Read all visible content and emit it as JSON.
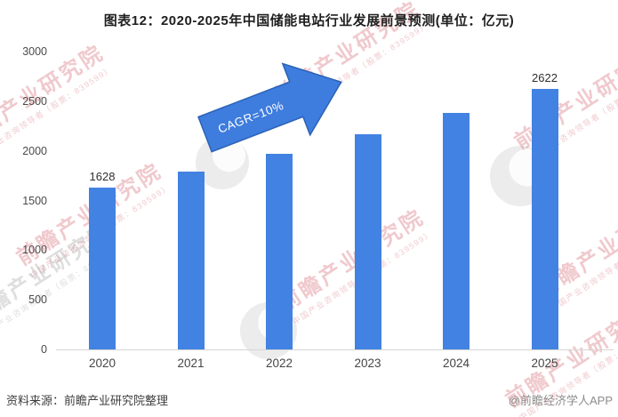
{
  "title": "图表12：2020-2025年中国储能电站行业发展前景预测(单位：亿元)",
  "chart_data": {
    "type": "bar",
    "title": "图表12：2020-2025年中国储能电站行业发展前景预测(单位：亿元)",
    "unit": "亿元",
    "categories": [
      "2020",
      "2021",
      "2022",
      "2023",
      "2024",
      "2025"
    ],
    "values": [
      1628,
      1791,
      1970,
      2167,
      2384,
      2622
    ],
    "data_labels": [
      "1628",
      null,
      null,
      null,
      null,
      "2622"
    ],
    "ylim": [
      0,
      3000
    ],
    "yticks": [
      "0",
      "500",
      "1000",
      "1500",
      "2000",
      "2500",
      "3000"
    ],
    "grid": false,
    "legend": false,
    "bar_color": "#4282E2",
    "annotation": {
      "text": "CAGR=10%",
      "shape": "block-arrow-up-right",
      "fill": "#3E7CDE",
      "stroke": "#2B62B4"
    }
  },
  "footer": {
    "source": "资料来源：前瞻产业研究院整理",
    "credit": "@前瞻经济学人APP"
  },
  "watermark": {
    "main": "前瞻产业研究院",
    "sub": "中国产业咨询领导者（股票：839599）"
  }
}
